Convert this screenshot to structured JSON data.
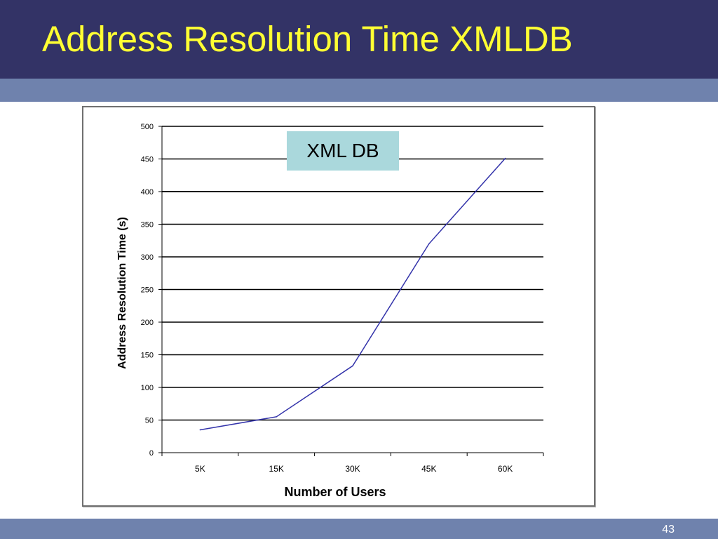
{
  "slide": {
    "title": "Address Resolution Time XMLDB",
    "number": "43"
  },
  "colors": {
    "title_bar": "#333366",
    "stripe": "#6f82ad",
    "title_text": "#ffff33",
    "series_line": "#3333aa",
    "callout_bg": "#aad8dc"
  },
  "chart_data": {
    "type": "line",
    "categories": [
      "5K",
      "15K",
      "30K",
      "45K",
      "60K"
    ],
    "values": [
      35,
      55,
      133,
      320,
      451
    ],
    "xlabel": "Number of Users",
    "ylabel": "Address Resolution Time (s)",
    "ylim": [
      0,
      500
    ],
    "yticks": [
      0,
      50,
      100,
      150,
      200,
      250,
      300,
      350,
      400,
      450,
      500
    ],
    "grid": true,
    "legend": "none",
    "annotation": "XML DB"
  }
}
